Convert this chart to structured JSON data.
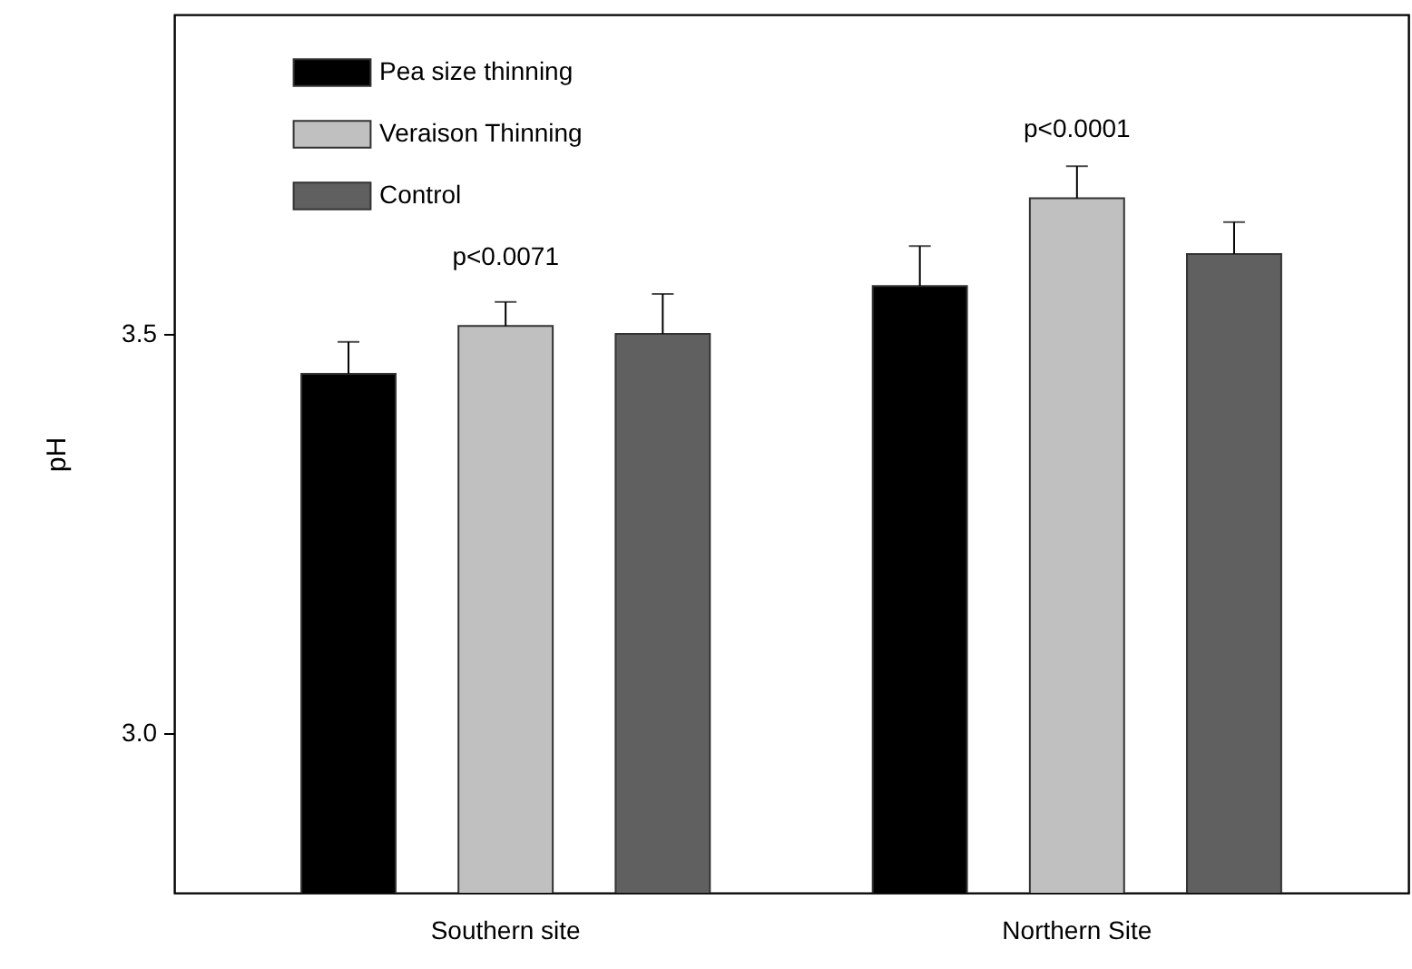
{
  "chart_data": {
    "type": "bar",
    "ylabel": "pH",
    "categories": [
      "Southern site",
      "Northern Site"
    ],
    "series": [
      {
        "name": "Pea size thinning",
        "color": "#000000",
        "values": [
          3.45,
          3.56
        ],
        "errors": [
          0.04,
          0.05
        ]
      },
      {
        "name": "Veraison Thinning",
        "color": "#c0c0c0",
        "values": [
          3.51,
          3.67
        ],
        "errors": [
          0.03,
          0.04
        ]
      },
      {
        "name": "Control",
        "color": "#606060",
        "values": [
          3.5,
          3.6
        ],
        "errors": [
          0.05,
          0.04
        ]
      }
    ],
    "ylim": [
      2.8,
      3.9
    ],
    "yticks": [
      {
        "value": 3,
        "label": "3.0"
      },
      {
        "value": 3.5,
        "label": "3.5"
      }
    ],
    "annotations": [
      "p<0.0071",
      "p<0.0001"
    ],
    "legend": "top left",
    "grid": false
  }
}
